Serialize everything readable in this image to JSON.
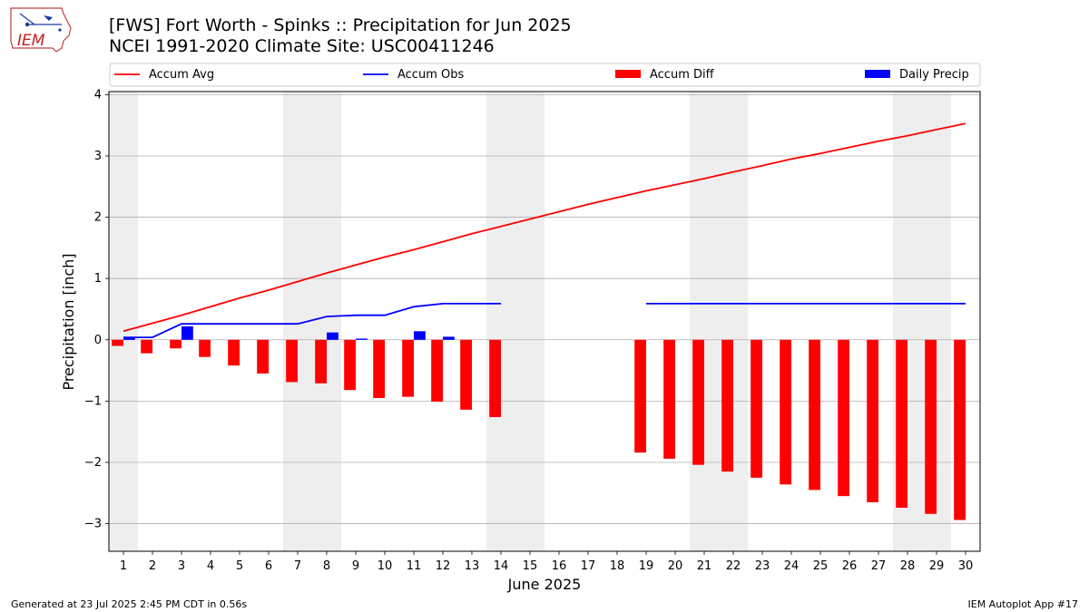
{
  "header": {
    "title_line1": "[FWS] Fort Worth - Spinks :: Precipitation for Jun 2025",
    "title_line2": "NCEI 1991-2020 Climate Site: USC00411246",
    "logo_text": "IEM"
  },
  "footer": {
    "left": "Generated at 23 Jul 2025 2:45 PM CDT in 0.56s",
    "right": "IEM Autoplot App #17"
  },
  "colors": {
    "avg": "#ff0000",
    "obs": "#0000ff",
    "diff": "#ff0000",
    "daily": "#0000ff",
    "weekend_shade": "#eeeeee",
    "grid": "#b0b0b0"
  },
  "chart_data": {
    "type": "bar",
    "title": "[FWS] Fort Worth - Spinks :: Precipitation for Jun 2025",
    "subtitle": "NCEI 1991-2020 Climate Site: USC00411246",
    "xlabel": "June 2025",
    "ylabel": "Precipitation [inch]",
    "x": [
      1,
      2,
      3,
      4,
      5,
      6,
      7,
      8,
      9,
      10,
      11,
      12,
      13,
      14,
      15,
      16,
      17,
      18,
      19,
      20,
      21,
      22,
      23,
      24,
      25,
      26,
      27,
      28,
      29,
      30
    ],
    "xlim": [
      0.5,
      30.5
    ],
    "ylim": [
      -3.45,
      4.05
    ],
    "yticks": [
      -3,
      -2,
      -1,
      0,
      1,
      2,
      3,
      4
    ],
    "grid": "horizontal",
    "legend_position": "top",
    "weekend_shading": [
      [
        0.5,
        1.5
      ],
      [
        6.5,
        8.5
      ],
      [
        13.5,
        15.5
      ],
      [
        20.5,
        22.5
      ],
      [
        27.5,
        29.5
      ]
    ],
    "series": [
      {
        "name": "Accum Avg",
        "kind": "line",
        "values": [
          0.14,
          0.27,
          0.4,
          0.54,
          0.68,
          0.81,
          0.95,
          1.09,
          1.22,
          1.35,
          1.47,
          1.6,
          1.73,
          1.85,
          1.97,
          2.09,
          2.21,
          2.32,
          2.43,
          2.53,
          2.63,
          2.74,
          2.84,
          2.95,
          3.04,
          3.14,
          3.24,
          3.33,
          3.43,
          3.53
        ]
      },
      {
        "name": "Accum Obs",
        "kind": "line",
        "values": [
          0.04,
          0.04,
          0.26,
          0.26,
          0.26,
          0.26,
          0.26,
          0.38,
          0.4,
          0.4,
          0.54,
          0.59,
          0.59,
          0.59,
          null,
          null,
          null,
          null,
          0.59,
          0.59,
          0.59,
          0.59,
          0.59,
          0.59,
          0.59,
          0.59,
          0.59,
          0.59,
          0.59,
          0.59
        ]
      },
      {
        "name": "Accum Diff",
        "kind": "bar",
        "values": [
          -0.1,
          -0.22,
          -0.14,
          -0.28,
          -0.42,
          -0.55,
          -0.69,
          -0.71,
          -0.82,
          -0.95,
          -0.93,
          -1.01,
          -1.14,
          -1.26,
          null,
          null,
          null,
          null,
          -1.84,
          -1.94,
          -2.04,
          -2.15,
          -2.25,
          -2.36,
          -2.45,
          -2.55,
          -2.65,
          -2.74,
          -2.84,
          -2.94
        ]
      },
      {
        "name": "Daily Precip",
        "kind": "bar",
        "values": [
          0.04,
          0,
          0.22,
          0,
          0,
          0,
          0,
          0.12,
          0.02,
          0,
          0.14,
          0.05,
          0,
          0,
          null,
          null,
          null,
          null,
          0,
          0,
          0,
          0,
          0,
          0,
          0,
          0,
          0,
          0,
          0,
          0
        ]
      }
    ]
  }
}
